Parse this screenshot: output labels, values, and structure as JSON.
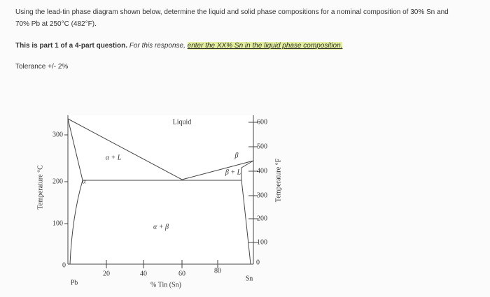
{
  "question": {
    "line1": "Using the lead-tin phase diagram shown below, determine the liquid and solid phase compositions for a nominal composition of 30% Sn and",
    "line2": "70% Pb at 250°C (482°F).",
    "part": "This is part 1 of a 4-part question.",
    "instruction": "For this response,",
    "highlight": "enter the XX% Sn in the liquid phase composition.",
    "tolerance": "Tolerance +/- 2%"
  },
  "diagram": {
    "y_label": "Temperature °C",
    "y2_label": "Temperature °F",
    "x_label": "% Tin (Sn)",
    "left_end": "Pb",
    "right_end": "Sn",
    "celsius_ticks": [
      "300",
      "200",
      "100",
      "0"
    ],
    "fahrenheit_ticks": [
      "600",
      "500",
      "400",
      "300",
      "200",
      "100",
      "0"
    ],
    "x_ticks": [
      "20",
      "40",
      "60",
      "80"
    ],
    "regions": {
      "liquid": "Liquid",
      "alpha_liquid": "α + L",
      "alpha": "α",
      "alpha_beta": "α + β",
      "beta": "β",
      "beta_liquid": "β + L"
    }
  }
}
